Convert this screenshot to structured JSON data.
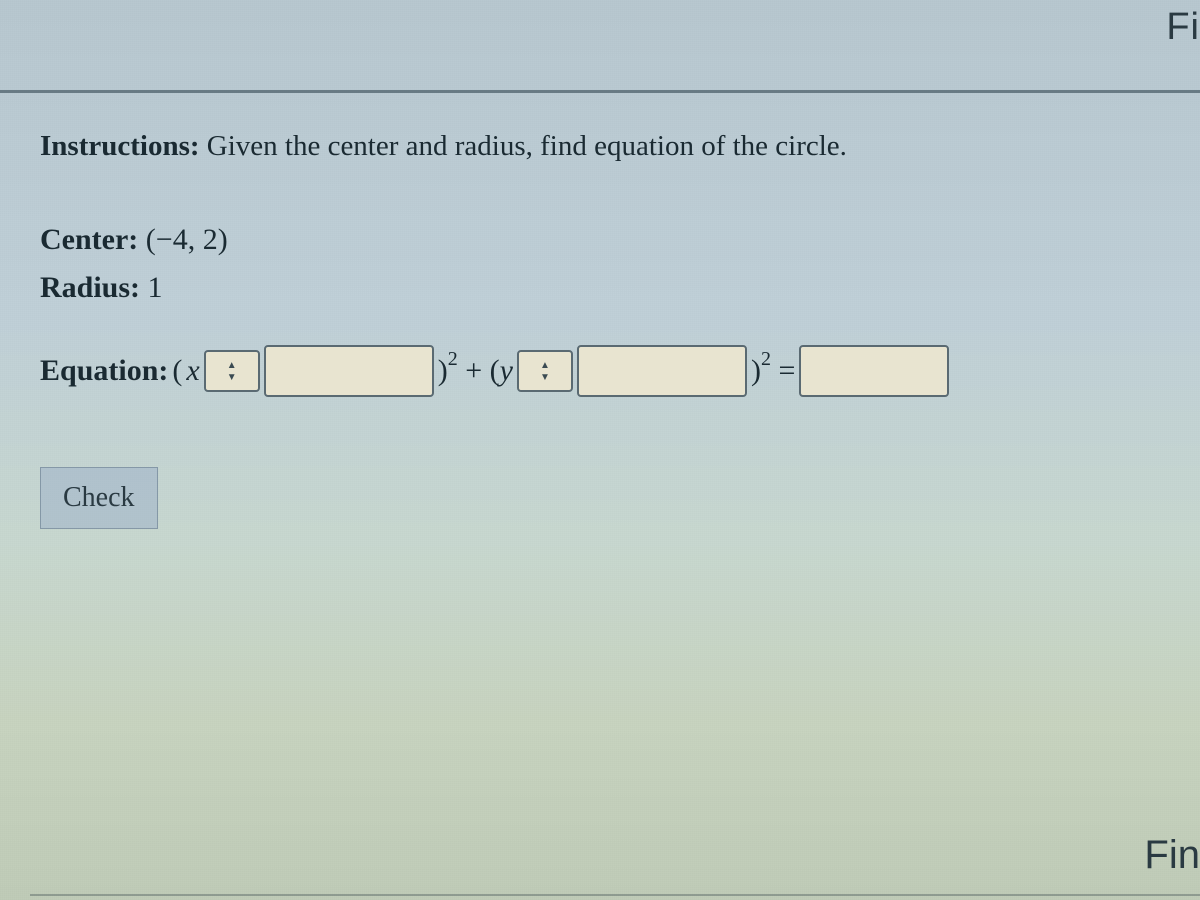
{
  "topRightPartial": "Fi",
  "instructions": {
    "label": "Instructions:",
    "text": "Given the center and radius, find equation of the circle."
  },
  "center": {
    "label": "Center:",
    "value": "(−4, 2)"
  },
  "radius": {
    "label": "Radius:",
    "value": "1"
  },
  "equation": {
    "label": "Equation:",
    "openParen1": "(",
    "var1": "x",
    "sign1_selected": "",
    "closeExpPlus": ")² + (",
    "var2": "y",
    "sign2_selected": "",
    "closeExpEq": ")² ="
  },
  "checkButton": "Check",
  "bottomRightPartial": "Fin",
  "colors": {
    "textDark": "#1a2a32",
    "inputBg": "#e8e4d0",
    "inputBorder": "#5a6a72",
    "buttonBg": "rgba(150,170,200,0.45)"
  }
}
